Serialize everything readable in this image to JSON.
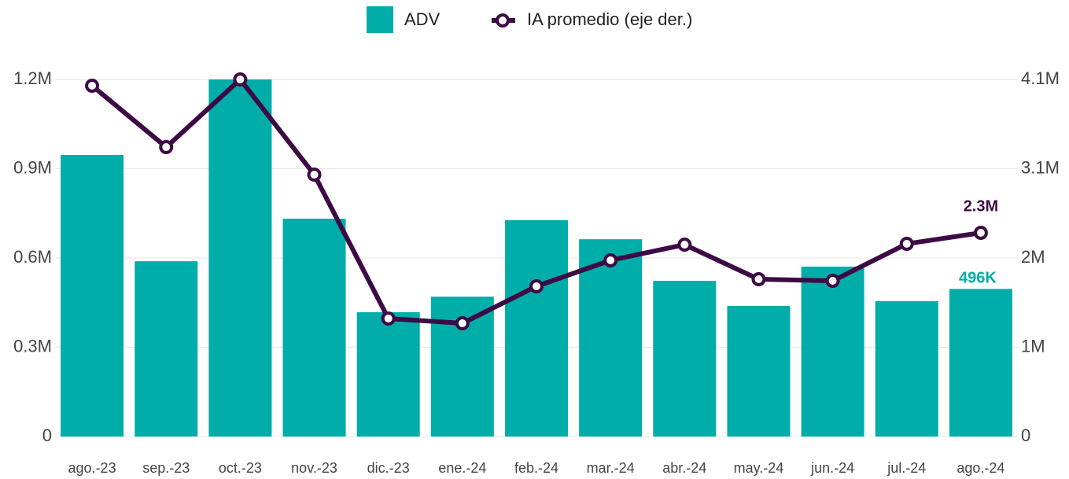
{
  "chart_data": {
    "type": "bar_line",
    "categories": [
      "ago.-23",
      "sep.-23",
      "oct.-23",
      "nov.-23",
      "dic.-23",
      "ene.-24",
      "feb.-24",
      "mar.-24",
      "abr.-24",
      "may.-24",
      "jun.-24",
      "jul.-24",
      "ago.-24"
    ],
    "series": [
      {
        "name": "ADV",
        "type": "bar",
        "color": "#00ada8",
        "values": [
          946000,
          589000,
          1200000,
          732000,
          418000,
          470000,
          727000,
          663000,
          523000,
          439000,
          571000,
          455000,
          496000
        ],
        "value_labels": [
          null,
          null,
          null,
          null,
          null,
          null,
          null,
          null,
          null,
          null,
          null,
          null,
          "496K"
        ]
      },
      {
        "name": "IA promedio (eje der.)",
        "type": "line",
        "axis": "y2",
        "color": "#3d0a45",
        "values": [
          4028000,
          3323000,
          4100000,
          3007000,
          1355000,
          1300000,
          1725000,
          2023000,
          2203000,
          1806000,
          1788000,
          2213000,
          2339000
        ],
        "value_labels": [
          null,
          null,
          null,
          null,
          null,
          null,
          null,
          null,
          null,
          null,
          null,
          null,
          "2.3M"
        ]
      }
    ],
    "ylim": [
      0,
      1200000
    ],
    "yticks": [
      0,
      {
        "value": 300000,
        "label": "0.3M"
      },
      {
        "value": 600000,
        "label": "0.6M"
      },
      {
        "value": 900000,
        "label": "0.9M"
      },
      {
        "value": 1200000,
        "label": "1.2M"
      }
    ],
    "y2lim": [
      0,
      4100000
    ],
    "y2ticks": [
      0,
      {
        "value": 1025000,
        "label": "1M"
      },
      {
        "value": 2050000,
        "label": "2M"
      },
      {
        "value": 3075000,
        "label": "3.1M"
      },
      {
        "value": 4100000,
        "label": "4.1M"
      }
    ],
    "grid": true,
    "legend": "top"
  }
}
